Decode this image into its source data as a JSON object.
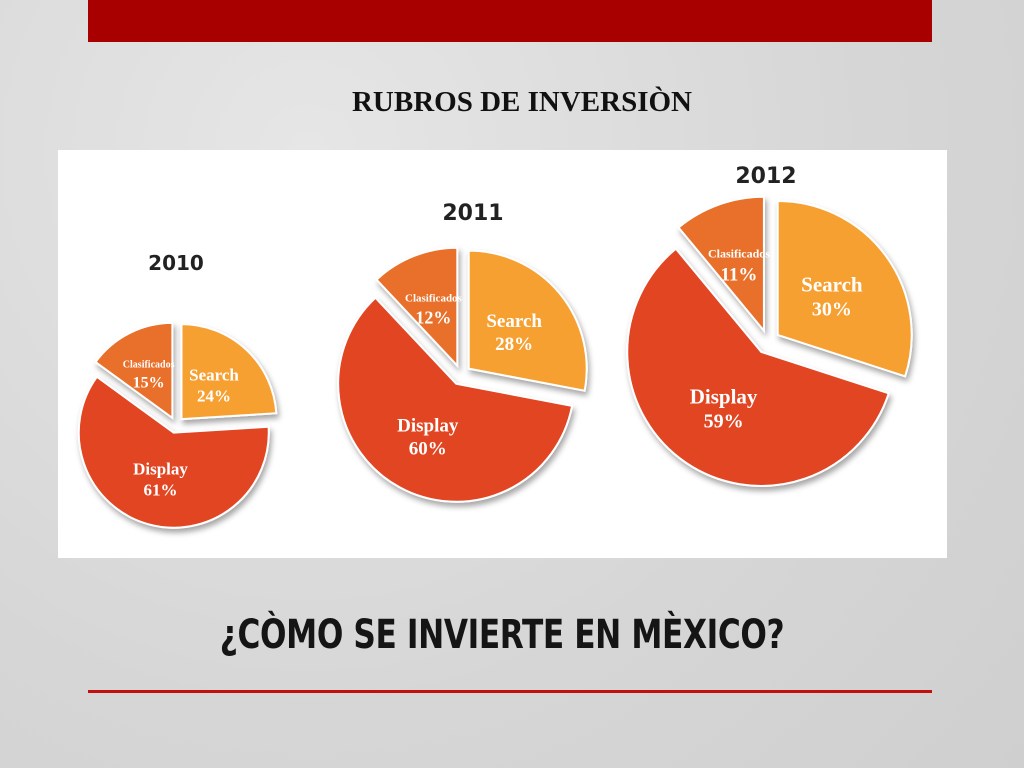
{
  "slide": {
    "subtitle": "RUBROS DE INVERSIÒN",
    "title": "¿CÒMO SE INVIERTE EN MÈXICO?"
  },
  "colors": {
    "top_bar": "#a80000",
    "rule": "#c01010",
    "search": "#f7a031",
    "clasificados": "#e8702a",
    "display": "#e24424"
  },
  "chart_data": [
    {
      "type": "pie",
      "title": "2010",
      "slices": [
        {
          "label": "Search",
          "value": 24,
          "display": "24%"
        },
        {
          "label": "Display",
          "value": 61,
          "display": "61%"
        },
        {
          "label": "Clasificados",
          "value": 15,
          "display": "15%"
        }
      ]
    },
    {
      "type": "pie",
      "title": "2011",
      "slices": [
        {
          "label": "Search",
          "value": 28,
          "display": "28%"
        },
        {
          "label": "Display",
          "value": 60,
          "display": "60%"
        },
        {
          "label": "Clasificados",
          "value": 12,
          "display": "12%"
        }
      ]
    },
    {
      "type": "pie",
      "title": "2012",
      "slices": [
        {
          "label": "Search",
          "value": 30,
          "display": "30%"
        },
        {
          "label": "Display",
          "value": 59,
          "display": "59%"
        },
        {
          "label": "Clasificados",
          "value": 11,
          "display": "11%"
        }
      ]
    }
  ]
}
